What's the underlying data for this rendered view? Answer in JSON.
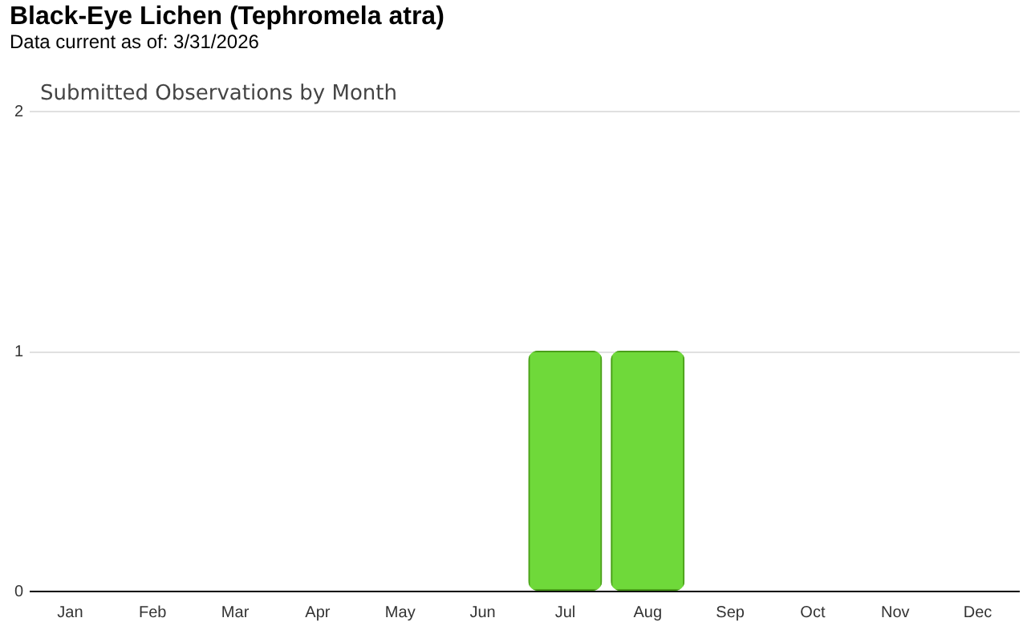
{
  "chart_data": {
    "type": "bar",
    "title": "Black-Eye Lichen   (Tephromela atra)",
    "subtitle": "Data current as of: 3/31/2026",
    "annotations": [
      "Submitted Observations by Month"
    ],
    "categories": [
      "Jan",
      "Feb",
      "Mar",
      "Apr",
      "May",
      "Jun",
      "Jul",
      "Aug",
      "Sep",
      "Oct",
      "Nov",
      "Dec"
    ],
    "values": [
      0,
      0,
      0,
      0,
      0,
      0,
      1,
      1,
      0,
      0,
      0,
      0
    ],
    "color": "#6fd93a",
    "ylim": [
      0,
      2
    ],
    "yticks": [
      0,
      1,
      2
    ],
    "grid": "y"
  }
}
